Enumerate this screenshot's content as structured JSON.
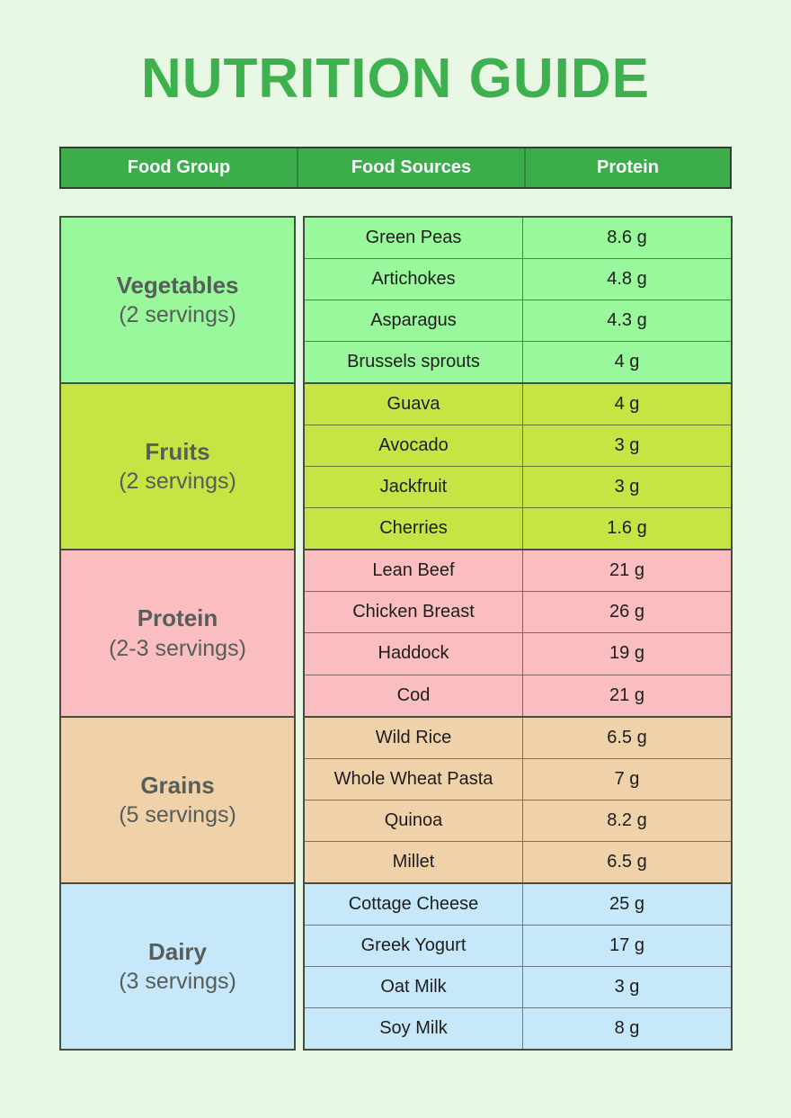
{
  "page_title": "NUTRITION GUIDE",
  "colors": {
    "background": "#e9f7e5",
    "title_green": "#3cb14e",
    "header_green": "#3bad4a",
    "header_text": "#ffffff",
    "border_dark": "#454d42",
    "group_label_text": "#575d58",
    "cell_text": "#1d1d1d",
    "vegetables": "#99f89b",
    "fruits": "#c4e544",
    "protein": "#fbbec0",
    "grains": "#efd1aa",
    "dairy": "#c7e8fa"
  },
  "chart_data": {
    "type": "table",
    "title": "NUTRITION GUIDE",
    "columns": [
      "Food Group",
      "Food Sources",
      "Protein"
    ],
    "groups": [
      {
        "name": "Vegetables",
        "servings": "(2 servings)",
        "color": "#99f89b",
        "rows": [
          [
            "Green Peas",
            "8.6 g"
          ],
          [
            "Artichokes",
            "4.8 g"
          ],
          [
            "Asparagus",
            "4.3 g"
          ],
          [
            "Brussels sprouts",
            "4 g"
          ]
        ]
      },
      {
        "name": "Fruits",
        "servings": "(2 servings)",
        "color": "#c4e544",
        "rows": [
          [
            "Guava",
            "4 g"
          ],
          [
            "Avocado",
            "3 g"
          ],
          [
            "Jackfruit",
            "3 g"
          ],
          [
            "Cherries",
            "1.6 g"
          ]
        ]
      },
      {
        "name": "Protein",
        "servings": "(2-3 servings)",
        "color": "#fbbec0",
        "rows": [
          [
            "Lean Beef",
            "21 g"
          ],
          [
            "Chicken Breast",
            "26 g"
          ],
          [
            "Haddock",
            "19 g"
          ],
          [
            "Cod",
            "21 g"
          ]
        ]
      },
      {
        "name": "Grains",
        "servings": "(5 servings)",
        "color": "#efd1aa",
        "rows": [
          [
            "Wild Rice",
            "6.5 g"
          ],
          [
            "Whole Wheat Pasta",
            "7 g"
          ],
          [
            "Quinoa",
            "8.2 g"
          ],
          [
            "Millet",
            "6.5 g"
          ]
        ]
      },
      {
        "name": "Dairy",
        "servings": "(3 servings)",
        "color": "#c7e8fa",
        "rows": [
          [
            "Cottage Cheese",
            "25 g"
          ],
          [
            "Greek Yogurt",
            "17 g"
          ],
          [
            "Oat Milk",
            "3 g"
          ],
          [
            "Soy Milk",
            "8 g"
          ]
        ]
      }
    ]
  }
}
